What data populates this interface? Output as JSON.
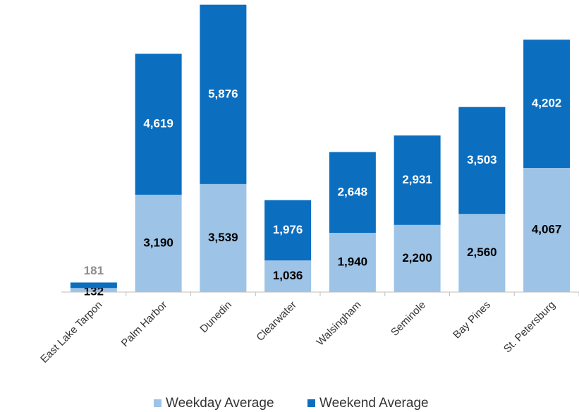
{
  "chart_data": {
    "type": "stacked_bar",
    "categories": [
      "East Lake Tarpon",
      "Palm Harbor",
      "Dunedin",
      "Clearwater",
      "Walsingham",
      "Seminole",
      "Bay Pines",
      "St. Petersburg"
    ],
    "series": [
      {
        "name": "Weekday Average",
        "color": "#9dc3e6",
        "values": [
          132,
          3190,
          3539,
          1036,
          1940,
          2200,
          2560,
          4067
        ],
        "value_labels": [
          "132",
          "3,190",
          "3,539",
          "1,036",
          "1,940",
          "2,200",
          "2,560",
          "4,067"
        ]
      },
      {
        "name": "Weekend Average",
        "color": "#0b6ebf",
        "values": [
          181,
          4619,
          5876,
          1976,
          2648,
          2931,
          3503,
          4202
        ],
        "value_labels": [
          "181",
          "4,619",
          "5,876",
          "1,976",
          "2,648",
          "2,931",
          "3,503",
          "4,202"
        ]
      }
    ],
    "ylim": [
      0,
      9500
    ],
    "legend": "bottom"
  }
}
